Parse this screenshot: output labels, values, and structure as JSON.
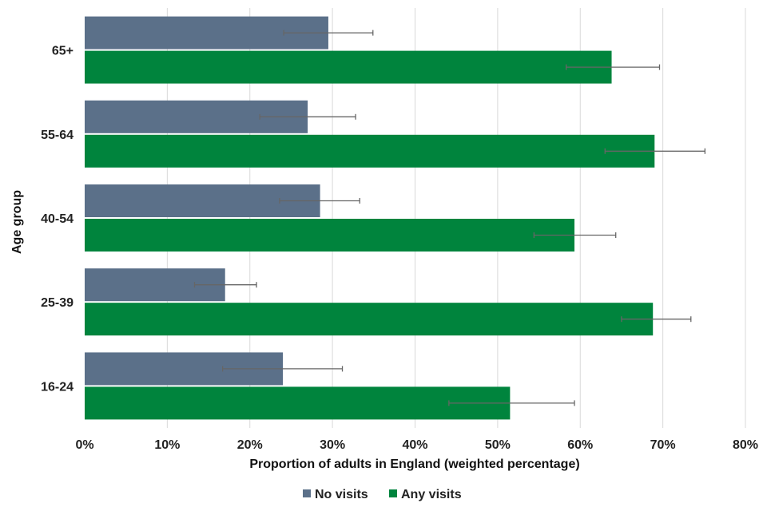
{
  "chart_data": {
    "type": "bar",
    "orientation": "horizontal",
    "categories": [
      "65+",
      "55-64",
      "40-54",
      "25-39",
      "16-24"
    ],
    "series": [
      {
        "name": "No visits",
        "color": "#5b7089",
        "values": [
          29.5,
          27.0,
          28.5,
          17.0,
          24.0
        ],
        "error_low": [
          24.1,
          21.2,
          23.6,
          13.3,
          16.7
        ],
        "error_high": [
          34.9,
          32.8,
          33.3,
          20.8,
          31.2
        ]
      },
      {
        "name": "Any visits",
        "color": "#00843d",
        "values": [
          63.8,
          69.0,
          59.3,
          68.8,
          51.5
        ],
        "error_low": [
          58.3,
          63.0,
          54.4,
          65.0,
          44.1
        ],
        "error_high": [
          69.6,
          75.1,
          64.3,
          73.4,
          59.3
        ]
      }
    ],
    "xlabel": "Proportion of adults in England (weighted percentage)",
    "ylabel": "Age group",
    "xlim": [
      0,
      80
    ],
    "xticks": [
      "0%",
      "10%",
      "20%",
      "30%",
      "40%",
      "50%",
      "60%",
      "70%",
      "80%"
    ],
    "grid": "vertical",
    "legend_position": "bottom",
    "error_bar_color": "#666666"
  }
}
